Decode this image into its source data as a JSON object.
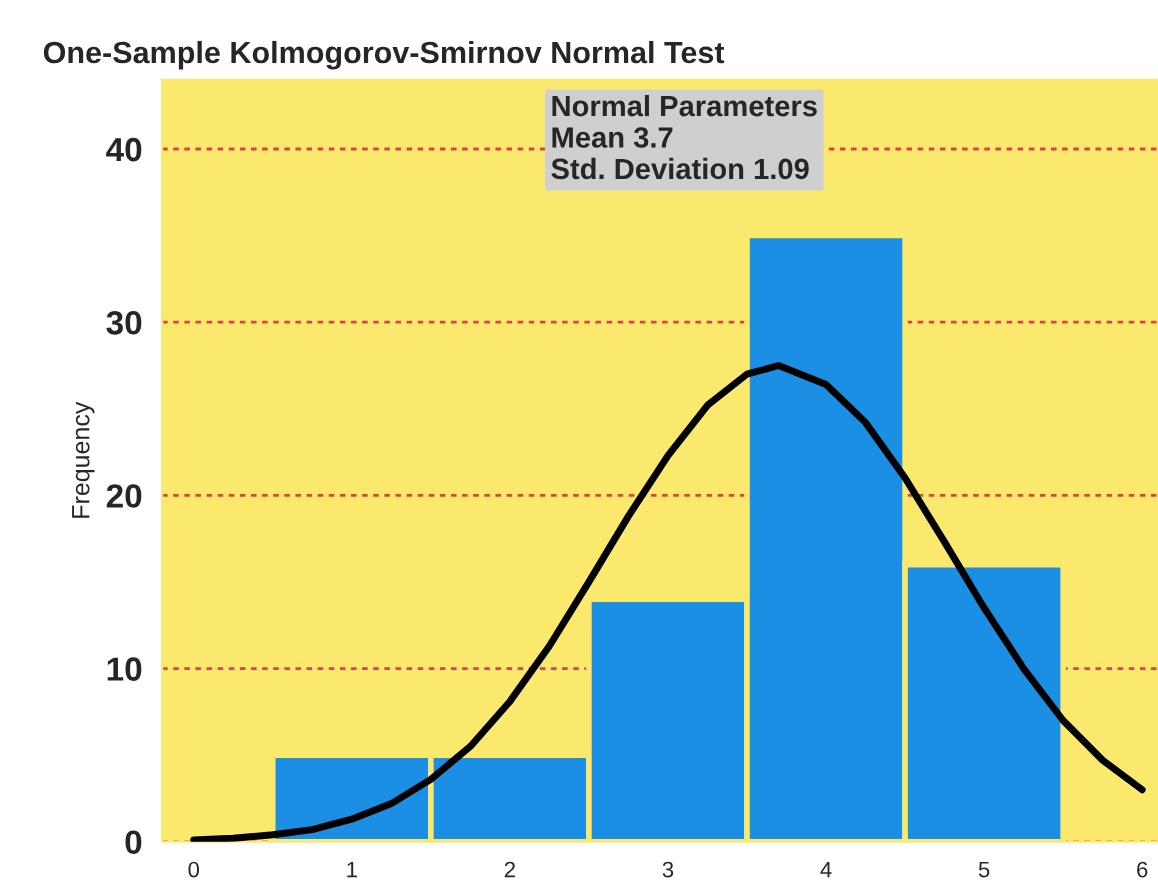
{
  "chart_data": {
    "type": "histogram",
    "title": "One-Sample Kolmogorov-Smirnov Normal Test",
    "ylabel": "Frequency",
    "bins": [
      0.5,
      1.5,
      2.5,
      3.5,
      4.5,
      5.5
    ],
    "values": [
      5,
      5,
      14,
      35,
      16
    ],
    "color": "#1a8fe3",
    "series": [
      {
        "type": "line",
        "color": "#000000",
        "x": [
          0,
          0.25,
          0.5,
          0.75,
          1,
          1.25,
          1.5,
          1.75,
          2,
          2.25,
          2.5,
          2.75,
          3,
          3.25,
          3.5,
          3.7,
          4,
          4.25,
          4.5,
          4.75,
          5,
          5.25,
          5.5,
          5.75,
          6
        ],
        "values": [
          0.1,
          0.2,
          0.4,
          0.7,
          1.3,
          2.2,
          3.6,
          5.5,
          8.1,
          11.3,
          15,
          18.8,
          22.3,
          25.2,
          27,
          27.5,
          26.4,
          24.2,
          21,
          17.3,
          13.5,
          10,
          7,
          4.7,
          3
        ]
      }
    ],
    "annotations": [
      "Normal Parameters",
      "Mean 3.7",
      "Std. Deviation 1.09"
    ],
    "xlim": [
      -0.2,
      6.1
    ],
    "xticks": [
      0,
      1,
      2,
      3,
      4,
      5,
      6
    ],
    "ylim": [
      0,
      44
    ],
    "yticks": [
      0,
      10,
      20,
      30,
      40
    ],
    "grid": "y",
    "legend": false
  }
}
